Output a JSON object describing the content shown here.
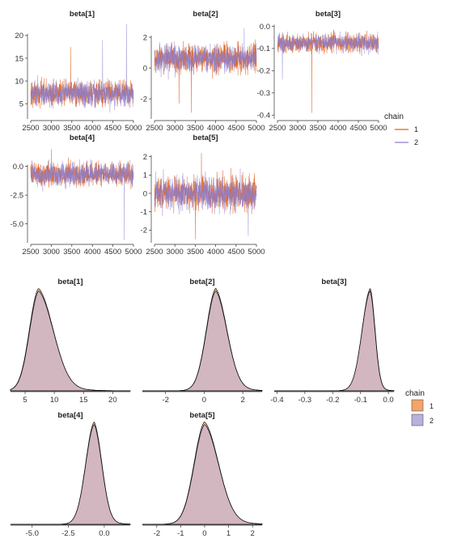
{
  "colors": {
    "chain1": "#E0601A",
    "chain2": "#8C7FCF",
    "dens1": "#F4A46A",
    "dens2": "#B9B0DC",
    "overlap": "#C49A9A"
  },
  "legend_trace": {
    "title": "chain",
    "items": [
      "1",
      "2"
    ]
  },
  "legend_density": {
    "title": "chain",
    "items": [
      "1",
      "2"
    ]
  },
  "chart_data": [
    {
      "type": "line",
      "role": "trace",
      "panels": [
        {
          "title": "beta[1]",
          "xlim": [
            2500,
            5000
          ],
          "ylim": [
            2,
            23
          ],
          "yticks": [
            5,
            10,
            15,
            20
          ],
          "xticks": [
            2500,
            3000,
            3500,
            4000,
            4500,
            5000
          ],
          "center": 7.3,
          "spread": 1.7,
          "spikes": [
            {
              "chain": 2,
              "x": 4830,
              "y": 22.5
            },
            {
              "chain": 2,
              "x": 4250,
              "y": 19.0
            },
            {
              "chain": 1,
              "x": 3470,
              "y": 17.5
            }
          ]
        },
        {
          "title": "beta[2]",
          "xlim": [
            2500,
            5000
          ],
          "ylim": [
            -3.2,
            3.0
          ],
          "yticks": [
            -2,
            0,
            2
          ],
          "xticks": [
            2500,
            3000,
            3500,
            4000,
            4500,
            5000
          ],
          "center": 0.6,
          "spread": 0.55,
          "spikes": [
            {
              "chain": 1,
              "x": 3400,
              "y": -2.9
            },
            {
              "chain": 1,
              "x": 3100,
              "y": -2.3
            },
            {
              "chain": 2,
              "x": 4700,
              "y": 2.6
            }
          ]
        },
        {
          "title": "beta[3]",
          "xlim": [
            2500,
            5000
          ],
          "ylim": [
            -0.41,
            0.02
          ],
          "yticks": [
            -0.4,
            -0.3,
            -0.2,
            -0.1,
            0.0
          ],
          "xticks": [
            2500,
            3000,
            3500,
            4000,
            4500,
            5000
          ],
          "center": -0.075,
          "spread": 0.025,
          "spikes": [
            {
              "chain": 1,
              "x": 3350,
              "y": -0.39
            },
            {
              "chain": 2,
              "x": 2620,
              "y": -0.24
            }
          ]
        },
        {
          "title": "beta[4]",
          "xlim": [
            2500,
            5000
          ],
          "ylim": [
            -6.5,
            1.8
          ],
          "yticks": [
            -5.0,
            -2.5,
            0.0
          ],
          "xticks": [
            2500,
            3000,
            3500,
            4000,
            4500,
            5000
          ],
          "center": -0.7,
          "spread": 0.6,
          "spikes": [
            {
              "chain": 2,
              "x": 4780,
              "y": -6.4
            },
            {
              "chain": 1,
              "x": 3000,
              "y": 1.5
            }
          ]
        },
        {
          "title": "beta[5]",
          "xlim": [
            2500,
            5000
          ],
          "ylim": [
            -2.6,
            2.6
          ],
          "yticks": [
            -2,
            -1,
            0,
            1,
            2
          ],
          "xticks": [
            2500,
            3000,
            3500,
            4000,
            4500,
            5000
          ],
          "center": 0.0,
          "spread": 0.55,
          "spikes": [
            {
              "chain": 1,
              "x": 3500,
              "y": -2.5
            },
            {
              "chain": 1,
              "x": 3650,
              "y": 2.2
            },
            {
              "chain": 2,
              "x": 4800,
              "y": -2.3
            }
          ]
        }
      ],
      "series": [
        {
          "name": "1"
        },
        {
          "name": "2"
        }
      ]
    },
    {
      "type": "area",
      "role": "density",
      "panels": [
        {
          "title": "beta[1]",
          "xlim": [
            2.5,
            23
          ],
          "xticks": [
            5,
            10,
            15,
            20
          ],
          "mode": 7.3,
          "left": 1.6,
          "right": 2.6
        },
        {
          "title": "beta[2]",
          "xlim": [
            -3.2,
            3.0
          ],
          "xticks": [
            -2,
            0,
            2
          ],
          "mode": 0.6,
          "left": 0.5,
          "right": 0.6
        },
        {
          "title": "beta[3]",
          "xlim": [
            -0.41,
            0.02
          ],
          "xticks": [
            -0.4,
            -0.3,
            -0.2,
            -0.1,
            0.0
          ],
          "mode": -0.065,
          "left": 0.03,
          "right": 0.018
        },
        {
          "title": "beta[4]",
          "xlim": [
            -6.5,
            1.8
          ],
          "xticks": [
            -5.0,
            -2.5,
            0.0
          ],
          "mode": -0.7,
          "left": 0.6,
          "right": 0.55
        },
        {
          "title": "beta[5]",
          "xlim": [
            -2.6,
            2.4
          ],
          "xticks": [
            -2,
            -1,
            0,
            1,
            2
          ],
          "mode": 0.0,
          "left": 0.45,
          "right": 0.6
        }
      ],
      "series": [
        {
          "name": "1"
        },
        {
          "name": "2"
        }
      ]
    }
  ]
}
